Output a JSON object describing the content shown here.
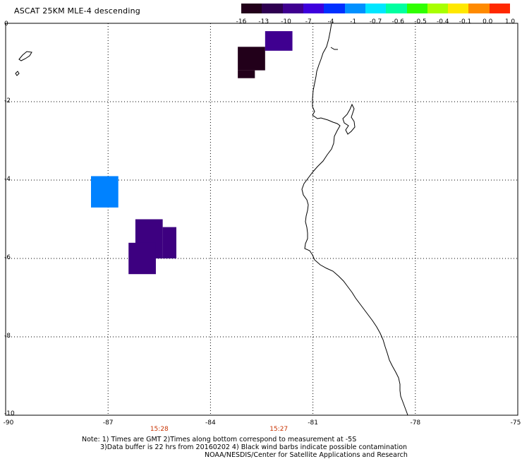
{
  "title": "ASCAT 25KM MLE-4 descending",
  "colorbar": {
    "labels": [
      "-16",
      "-13",
      "-10",
      "-7",
      "-4",
      "-1",
      "-0.7",
      "-0.6",
      "-0.5",
      "-0.4",
      "-0.1",
      "0.0",
      "1.0"
    ],
    "colors": [
      "#22001a",
      "#2e0050",
      "#3f0090",
      "#3d00dd",
      "#0030ff",
      "#0090ff",
      "#00e6ff",
      "#00ffa0",
      "#30ff00",
      "#a8ff00",
      "#ffe800",
      "#ff8a00",
      "#ff2800"
    ]
  },
  "axes": {
    "x_ticks": [
      "-90",
      "-87",
      "-84",
      "-81",
      "-78",
      "-75"
    ],
    "y_ticks": [
      "0",
      "-2",
      "-4",
      "-6",
      "-8",
      "-10"
    ],
    "x_range": [
      -90,
      -75
    ],
    "y_range": [
      -10,
      0
    ],
    "grid": "dotted"
  },
  "times": [
    {
      "label": "15:28",
      "lon": -85.5
    },
    {
      "label": "15:27",
      "lon": -82
    }
  ],
  "cells": [
    {
      "lon": [
        -83.2,
        -82.4
      ],
      "lat": [
        -0.6,
        -1.2
      ],
      "color": "#22001a"
    },
    {
      "lon": [
        -83.2,
        -82.7
      ],
      "lat": [
        -1.2,
        -1.4
      ],
      "color": "#22001a"
    },
    {
      "lon": [
        -82.4,
        -81.6
      ],
      "lat": [
        -0.2,
        -0.7
      ],
      "color": "#3f0090"
    },
    {
      "lon": [
        -87.5,
        -86.7
      ],
      "lat": [
        -3.9,
        -4.7
      ],
      "color": "#0082ff"
    },
    {
      "lon": [
        -86.2,
        -85.4
      ],
      "lat": [
        -5.0,
        -6.0
      ],
      "color": "#3d0080"
    },
    {
      "lon": [
        -85.4,
        -85.0
      ],
      "lat": [
        -5.2,
        -6.0
      ],
      "color": "#3d0080"
    },
    {
      "lon": [
        -86.4,
        -85.6
      ],
      "lat": [
        -5.6,
        -6.4
      ],
      "color": "#3d0080"
    }
  ],
  "note": {
    "line1": "Note: 1) Times are GMT 2)Times along bottom correspond to measurement at -5S",
    "line2": "3)Data buffer is 22 hrs from 20160202 4) Black wind barbs indicate possible contamination",
    "line3": "NOAA/NESDIS/Center for Satellite Applications and Research"
  }
}
